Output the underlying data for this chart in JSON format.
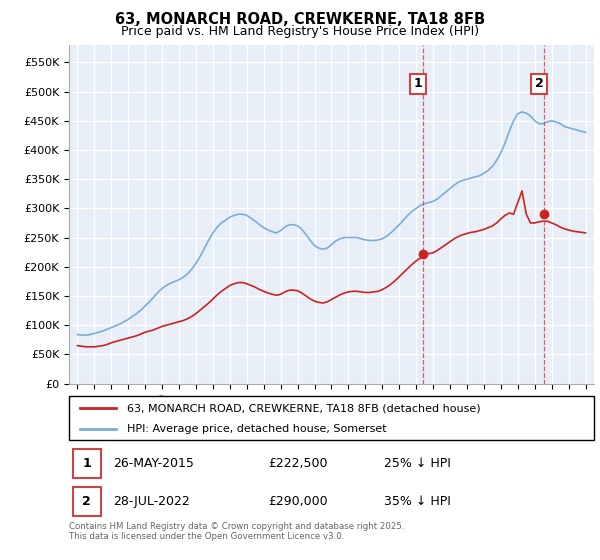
{
  "title": "63, MONARCH ROAD, CREWKERNE, TA18 8FB",
  "subtitle": "Price paid vs. HM Land Registry's House Price Index (HPI)",
  "legend_line1": "63, MONARCH ROAD, CREWKERNE, TA18 8FB (detached house)",
  "legend_line2": "HPI: Average price, detached house, Somerset",
  "transaction1_date": "26-MAY-2015",
  "transaction1_price": "£222,500",
  "transaction1_hpi": "25% ↓ HPI",
  "transaction1_year": 2015.4,
  "transaction1_value": 222500,
  "transaction2_date": "28-JUL-2022",
  "transaction2_price": "£290,000",
  "transaction2_hpi": "35% ↓ HPI",
  "transaction2_year": 2022.57,
  "transaction2_value": 290000,
  "hpi_color": "#7aaed6",
  "price_color": "#cc2222",
  "vline_color": "#cc4444",
  "background_color": "#e8eef8",
  "ylim_min": 0,
  "ylim_max": 580000,
  "yticks": [
    0,
    50000,
    100000,
    150000,
    200000,
    250000,
    300000,
    350000,
    400000,
    450000,
    500000,
    550000
  ],
  "ytick_labels": [
    "£0",
    "£50K",
    "£100K",
    "£150K",
    "£200K",
    "£250K",
    "£300K",
    "£350K",
    "£400K",
    "£450K",
    "£500K",
    "£550K"
  ],
  "xmin": 1994.5,
  "xmax": 2025.5,
  "footnote": "Contains HM Land Registry data © Crown copyright and database right 2025.\nThis data is licensed under the Open Government Licence v3.0.",
  "years_hpi": [
    1995.0,
    1995.25,
    1995.5,
    1995.75,
    1996.0,
    1996.25,
    1996.5,
    1996.75,
    1997.0,
    1997.25,
    1997.5,
    1997.75,
    1998.0,
    1998.25,
    1998.5,
    1998.75,
    1999.0,
    1999.25,
    1999.5,
    1999.75,
    2000.0,
    2000.25,
    2000.5,
    2000.75,
    2001.0,
    2001.25,
    2001.5,
    2001.75,
    2002.0,
    2002.25,
    2002.5,
    2002.75,
    2003.0,
    2003.25,
    2003.5,
    2003.75,
    2004.0,
    2004.25,
    2004.5,
    2004.75,
    2005.0,
    2005.25,
    2005.5,
    2005.75,
    2006.0,
    2006.25,
    2006.5,
    2006.75,
    2007.0,
    2007.25,
    2007.5,
    2007.75,
    2008.0,
    2008.25,
    2008.5,
    2008.75,
    2009.0,
    2009.25,
    2009.5,
    2009.75,
    2010.0,
    2010.25,
    2010.5,
    2010.75,
    2011.0,
    2011.25,
    2011.5,
    2011.75,
    2012.0,
    2012.25,
    2012.5,
    2012.75,
    2013.0,
    2013.25,
    2013.5,
    2013.75,
    2014.0,
    2014.25,
    2014.5,
    2014.75,
    2015.0,
    2015.25,
    2015.5,
    2015.75,
    2016.0,
    2016.25,
    2016.5,
    2016.75,
    2017.0,
    2017.25,
    2017.5,
    2017.75,
    2018.0,
    2018.25,
    2018.5,
    2018.75,
    2019.0,
    2019.25,
    2019.5,
    2019.75,
    2020.0,
    2020.25,
    2020.5,
    2020.75,
    2021.0,
    2021.25,
    2021.5,
    2021.75,
    2022.0,
    2022.25,
    2022.5,
    2022.75,
    2023.0,
    2023.25,
    2023.5,
    2023.75,
    2024.0,
    2024.25,
    2024.5,
    2024.75,
    2025.0
  ],
  "hpi_values": [
    84000,
    83000,
    83000,
    84000,
    86000,
    88000,
    90000,
    93000,
    96000,
    99000,
    102000,
    106000,
    110000,
    115000,
    120000,
    126000,
    133000,
    140000,
    148000,
    156000,
    163000,
    168000,
    172000,
    175000,
    178000,
    182000,
    188000,
    196000,
    206000,
    218000,
    232000,
    246000,
    258000,
    268000,
    275000,
    280000,
    285000,
    288000,
    290000,
    290000,
    288000,
    283000,
    278000,
    272000,
    267000,
    263000,
    260000,
    258000,
    262000,
    268000,
    272000,
    272000,
    270000,
    264000,
    255000,
    245000,
    236000,
    232000,
    230000,
    232000,
    238000,
    244000,
    248000,
    250000,
    250000,
    250000,
    250000,
    248000,
    246000,
    245000,
    245000,
    246000,
    248000,
    252000,
    258000,
    265000,
    272000,
    280000,
    288000,
    295000,
    300000,
    305000,
    308000,
    310000,
    312000,
    316000,
    322000,
    328000,
    334000,
    340000,
    345000,
    348000,
    350000,
    352000,
    354000,
    356000,
    360000,
    365000,
    372000,
    382000,
    395000,
    412000,
    432000,
    450000,
    462000,
    465000,
    463000,
    458000,
    450000,
    445000,
    445000,
    448000,
    450000,
    448000,
    445000,
    440000,
    438000,
    436000,
    434000,
    432000,
    430000
  ],
  "price_values": [
    65000,
    64000,
    63000,
    63000,
    63000,
    64000,
    65000,
    67000,
    70000,
    72000,
    74000,
    76000,
    78000,
    80000,
    82000,
    85000,
    88000,
    90000,
    92000,
    95000,
    98000,
    100000,
    102000,
    104000,
    106000,
    108000,
    111000,
    115000,
    120000,
    126000,
    132000,
    138000,
    145000,
    152000,
    158000,
    163000,
    168000,
    171000,
    173000,
    173000,
    171000,
    168000,
    165000,
    161000,
    158000,
    155000,
    153000,
    151000,
    153000,
    157000,
    160000,
    160000,
    159000,
    155000,
    150000,
    145000,
    141000,
    139000,
    138000,
    140000,
    144000,
    148000,
    152000,
    155000,
    157000,
    158000,
    158000,
    157000,
    156000,
    156000,
    157000,
    158000,
    161000,
    165000,
    170000,
    176000,
    183000,
    190000,
    197000,
    204000,
    210000,
    215000,
    220000,
    222500,
    224000,
    228000,
    233000,
    238000,
    243000,
    248000,
    252000,
    255000,
    257000,
    259000,
    260000,
    262000,
    264000,
    267000,
    270000,
    275000,
    282000,
    288000,
    292000,
    290000,
    310000,
    330000,
    290000,
    275000,
    275000,
    277000,
    278000,
    278000,
    275000,
    272000,
    268000,
    265000,
    263000,
    261000,
    260000,
    259000,
    258000
  ]
}
